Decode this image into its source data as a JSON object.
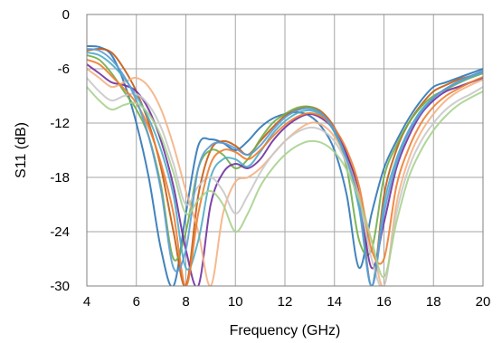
{
  "chart_data": {
    "type": "line",
    "title": "",
    "xlabel": "Frequency (GHz)",
    "ylabel": "S11 (dB)",
    "xlim": [
      4,
      20
    ],
    "ylim": [
      -30,
      0
    ],
    "x_ticks": [
      4,
      6,
      8,
      10,
      12,
      14,
      16,
      18,
      20
    ],
    "y_ticks": [
      0,
      -6,
      -12,
      -18,
      -24,
      -30
    ],
    "x_tick_labels": [
      "4",
      "6",
      "8",
      "10",
      "12",
      "14",
      "16",
      "18",
      "20"
    ],
    "y_tick_labels": [
      "0",
      "-6",
      "-12",
      "-18",
      "-24",
      "-30"
    ],
    "grid": true,
    "legend": "none",
    "x": [
      4,
      4.5,
      5,
      5.5,
      6,
      6.5,
      7,
      7.5,
      8,
      8.5,
      9,
      9.5,
      10,
      10.5,
      11,
      11.5,
      12,
      12.5,
      13,
      13.5,
      14,
      14.5,
      15,
      15.5,
      16,
      16.5,
      17,
      17.5,
      18,
      18.5,
      19,
      19.5,
      20
    ],
    "series": [
      {
        "values": [
          -3.5,
          -3.6,
          -4.5,
          -7.5,
          -12,
          -18,
          -26,
          -30,
          -22,
          -14.5,
          -13.8,
          -14.2,
          -15,
          -14,
          -12.5,
          -11.5,
          -11,
          -10.8,
          -11.2,
          -12.5,
          -15,
          -20,
          -28,
          -22,
          -17,
          -14,
          -11.5,
          -9.5,
          -8,
          -7.5,
          -7,
          -6.5,
          -6
        ]
      },
      {
        "values": [
          -4,
          -3.8,
          -4.2,
          -6,
          -8.5,
          -12,
          -17,
          -24,
          -30,
          -20,
          -15,
          -14,
          -14.5,
          -15.5,
          -14,
          -12.5,
          -11.2,
          -10.5,
          -10.2,
          -10.8,
          -12.5,
          -15.5,
          -20,
          -30,
          -20,
          -15,
          -12,
          -10,
          -8.5,
          -7.8,
          -7.2,
          -6.8,
          -6.3
        ]
      },
      {
        "values": [
          -4.5,
          -5,
          -6.5,
          -8.5,
          -10.5,
          -13.5,
          -19,
          -27,
          -24,
          -17,
          -15,
          -15.5,
          -17,
          -16,
          -13.8,
          -12,
          -11,
          -10.3,
          -10.2,
          -11,
          -13,
          -17,
          -25,
          -26,
          -18,
          -14.5,
          -12,
          -10.2,
          -9,
          -8.3,
          -7.6,
          -7,
          -6.5
        ]
      },
      {
        "values": [
          -5.5,
          -6.5,
          -7.5,
          -7.8,
          -8.5,
          -10.5,
          -14,
          -19,
          -26,
          -30,
          -21,
          -17.5,
          -16.5,
          -17,
          -16,
          -14,
          -12.5,
          -11.5,
          -11,
          -11.5,
          -12.8,
          -15.5,
          -20,
          -28,
          -23,
          -17,
          -13.5,
          -11,
          -9.5,
          -8.5,
          -8,
          -7.5,
          -7
        ]
      },
      {
        "values": [
          -6,
          -7,
          -8,
          -7.5,
          -7,
          -8,
          -10.5,
          -14.5,
          -19.5,
          -24,
          -30,
          -22,
          -18.5,
          -18,
          -17,
          -15.5,
          -14,
          -12.8,
          -12,
          -12.2,
          -13.5,
          -16,
          -20,
          -25,
          -30,
          -21,
          -16,
          -13,
          -11,
          -9.5,
          -8.5,
          -7.8,
          -7.2
        ]
      },
      {
        "values": [
          -4.2,
          -4.5,
          -5.5,
          -7,
          -9,
          -11.5,
          -15,
          -20,
          -28,
          -25,
          -18,
          -16,
          -16,
          -16.8,
          -15.2,
          -13.2,
          -11.8,
          -10.9,
          -10.6,
          -11.2,
          -13,
          -16.2,
          -21.5,
          -30,
          -21,
          -16,
          -12.8,
          -10.6,
          -9.2,
          -8.2,
          -7.5,
          -6.9,
          -6.4
        ]
      },
      {
        "values": [
          -7,
          -8.5,
          -9.5,
          -9,
          -8.8,
          -10,
          -12.5,
          -16.5,
          -21,
          -19,
          -18,
          -19.5,
          -22,
          -20,
          -17.5,
          -15.5,
          -14,
          -13,
          -12.5,
          -12.8,
          -14,
          -16.5,
          -20.5,
          -27,
          -30,
          -22,
          -17,
          -14,
          -12,
          -10.5,
          -9.5,
          -8.8,
          -8
        ]
      },
      {
        "values": [
          -5,
          -5.5,
          -6.8,
          -8.2,
          -9.8,
          -12.5,
          -16.5,
          -22,
          -30,
          -22,
          -16.5,
          -15,
          -15.2,
          -16,
          -15,
          -13.5,
          -12.2,
          -11.3,
          -10.9,
          -11.3,
          -12.6,
          -15,
          -19,
          -26,
          -27,
          -19,
          -14.8,
          -12,
          -10.2,
          -9,
          -8.2,
          -7.5,
          -6.9
        ]
      },
      {
        "values": [
          -3.8,
          -4,
          -5,
          -6.8,
          -9.5,
          -13.5,
          -19.5,
          -28,
          -26,
          -17,
          -14.5,
          -14.2,
          -14.8,
          -15.5,
          -14.5,
          -12.8,
          -11.4,
          -10.6,
          -10.4,
          -11,
          -12.8,
          -16,
          -21,
          -30,
          -22,
          -16.5,
          -13,
          -10.8,
          -9.2,
          -8.2,
          -7.4,
          -6.8,
          -6.2
        ]
      },
      {
        "values": [
          -8,
          -9.5,
          -10.5,
          -10,
          -9.8,
          -11,
          -13.5,
          -17.5,
          -22,
          -20.5,
          -19.5,
          -21,
          -24,
          -22,
          -19,
          -17,
          -15.5,
          -14.5,
          -14,
          -14.2,
          -15.2,
          -17.2,
          -20.5,
          -25,
          -29,
          -23,
          -18,
          -15,
          -12.8,
          -11.2,
          -10,
          -9.2,
          -8.5
        ]
      }
    ]
  },
  "series_colors": [
    "#2e75b6",
    "#c55a11",
    "#70ad47",
    "#7030a0",
    "#f4b183",
    "#4bacc6",
    "#c9c9c9",
    "#ed7d31",
    "#5b9bd5",
    "#a9d18e"
  ]
}
